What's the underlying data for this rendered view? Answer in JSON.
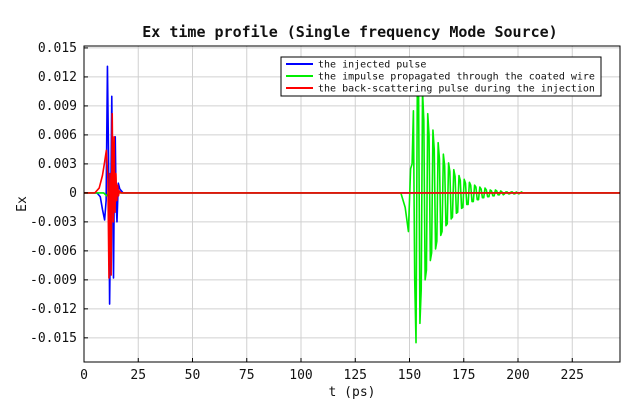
{
  "chart_data": {
    "type": "line",
    "title": "Ex time profile (Single frequency Mode Source)",
    "xlabel": "t (ps)",
    "ylabel": "Ex",
    "xlim": [
      0,
      247
    ],
    "ylim": [
      -0.0175,
      0.0152
    ],
    "xticks": [
      0,
      25,
      50,
      75,
      100,
      125,
      150,
      175,
      200,
      225
    ],
    "xtick_labels": [
      "0",
      "25",
      "50",
      "75",
      "100",
      "125",
      "150",
      "175",
      "200",
      "225"
    ],
    "yticks": [
      0.015,
      0.012,
      0.009,
      0.006,
      0.003,
      0,
      -0.003,
      -0.006,
      -0.009,
      -0.012,
      -0.015
    ],
    "ytick_labels": [
      "0.015",
      "0.012",
      "0.009",
      "0.006",
      "0.003",
      "0",
      "-0.003",
      "-0.006",
      "-0.009",
      "-0.012",
      "-0.015"
    ],
    "grid": true,
    "legend_position": "top-right",
    "series": [
      {
        "name": "the injected pulse",
        "color": "#0000ff",
        "x": [
          0,
          6,
          7.5,
          8.5,
          9.5,
          10.2,
          10.8,
          11.3,
          11.8,
          12.3,
          12.8,
          13.2,
          13.6,
          14.0,
          14.4,
          14.8,
          15.2,
          15.8,
          16.5,
          18,
          25,
          247
        ],
        "y": [
          0,
          0,
          -0.0004,
          -0.0017,
          -0.0028,
          -0.0008,
          0.0131,
          0.004,
          -0.0115,
          -0.002,
          0.01,
          0.0005,
          -0.0088,
          0.002,
          0.0058,
          -0.001,
          -0.003,
          0.001,
          0.0004,
          0,
          0,
          0
        ]
      },
      {
        "name": "the impulse propagated through the coated wire",
        "color": "#00ee00",
        "x": [
          0,
          9,
          10.5,
          12,
          13,
          14,
          15,
          16,
          18,
          146,
          148,
          149.5,
          150.5,
          151.2,
          151.8,
          152.4,
          153.0,
          153.6,
          154.2,
          154.8,
          155.4,
          156.0,
          156.6,
          157.2,
          157.8,
          158.4,
          159.0,
          159.6,
          160.2,
          160.8,
          161.4,
          162.0,
          162.6,
          163.2,
          163.8,
          164.4,
          165.0,
          165.6,
          166.2,
          166.8,
          167.4,
          168.0,
          168.6,
          169.2,
          169.8,
          170.4,
          171.0,
          171.6,
          172.2,
          172.8,
          173.4,
          174.0,
          174.6,
          175.2,
          175.8,
          176.4,
          177.0,
          177.6,
          178.2,
          178.8,
          179.4,
          180.0,
          180.6,
          181.2,
          181.8,
          182.4,
          183.0,
          183.6,
          184.2,
          184.8,
          185.4,
          186.0,
          186.6,
          187.2,
          187.8,
          188.4,
          189.0,
          189.6,
          190.2,
          190.8,
          191.4,
          192.0,
          192.6,
          193.2,
          193.8,
          194.4,
          195.0,
          195.6,
          196.2,
          196.8,
          197.4,
          198.0,
          198.6,
          199.2,
          199.8,
          200.4,
          201.0,
          201.6,
          202.2,
          202.8,
          203.4,
          204.0,
          204.6,
          205.2,
          205.8,
          206.4,
          207.0,
          207.6,
          208.2,
          208.8,
          209.4,
          210.0,
          212,
          247
        ],
        "y": [
          0,
          0,
          -0.0003,
          0.0002,
          -0.0002,
          0.0001,
          -0.0001,
          0,
          0,
          0,
          -0.0015,
          -0.004,
          0.0025,
          0.003,
          0.0085,
          -0.009,
          -0.0155,
          0.011,
          0.01,
          -0.0135,
          -0.01,
          0.0105,
          0.0075,
          -0.009,
          -0.008,
          0.0082,
          0.006,
          -0.007,
          -0.0062,
          0.0065,
          0.0045,
          -0.0058,
          -0.005,
          0.0052,
          0.0035,
          -0.0044,
          -0.004,
          0.004,
          0.0028,
          -0.0034,
          -0.0032,
          0.0031,
          0.0022,
          -0.0027,
          -0.0025,
          0.0024,
          0.0017,
          -0.0021,
          -0.002,
          0.0018,
          0.0013,
          -0.0016,
          -0.0015,
          0.0014,
          0.001,
          -0.0012,
          -0.0012,
          0.0011,
          0.0008,
          -0.0009,
          -0.0009,
          0.0008,
          0.0006,
          -0.0007,
          -0.0007,
          0.0006,
          0.0004,
          -0.0005,
          -0.0005,
          0.0005,
          0.0003,
          -0.0004,
          -0.0004,
          0.0003,
          0.0002,
          -0.0003,
          -0.0003,
          0.0003,
          0.0002,
          -0.0002,
          -0.0002,
          0.0002,
          0.0001,
          -0.0002,
          -0.0001,
          0.0001,
          0.0001,
          -0.0001,
          -0.0001,
          0.0001,
          0.0001,
          -0.0001,
          -0.0001,
          0.0001,
          0,
          -0.0001,
          0,
          0.0001,
          0,
          0,
          0,
          0,
          0,
          0,
          0,
          0,
          0,
          0,
          0,
          0,
          0,
          0,
          0,
          0
        ]
      },
      {
        "name": "the back-scattering pulse during the injection",
        "color": "#ff0000",
        "x": [
          0,
          5,
          7,
          8.5,
          9.5,
          10.3,
          11.0,
          11.5,
          12.0,
          12.5,
          13.0,
          13.5,
          13.9,
          14.3,
          14.7,
          15.1,
          15.5,
          15.9,
          16.3,
          17,
          19,
          247
        ],
        "y": [
          0,
          0,
          0.0005,
          0.0018,
          0.0032,
          0.0044,
          0.0015,
          -0.0088,
          0.002,
          -0.0085,
          0.0082,
          -0.003,
          0.0058,
          -0.002,
          0.002,
          -0.0008,
          0.0008,
          -0.0003,
          0.0002,
          0,
          0,
          0
        ]
      }
    ]
  }
}
